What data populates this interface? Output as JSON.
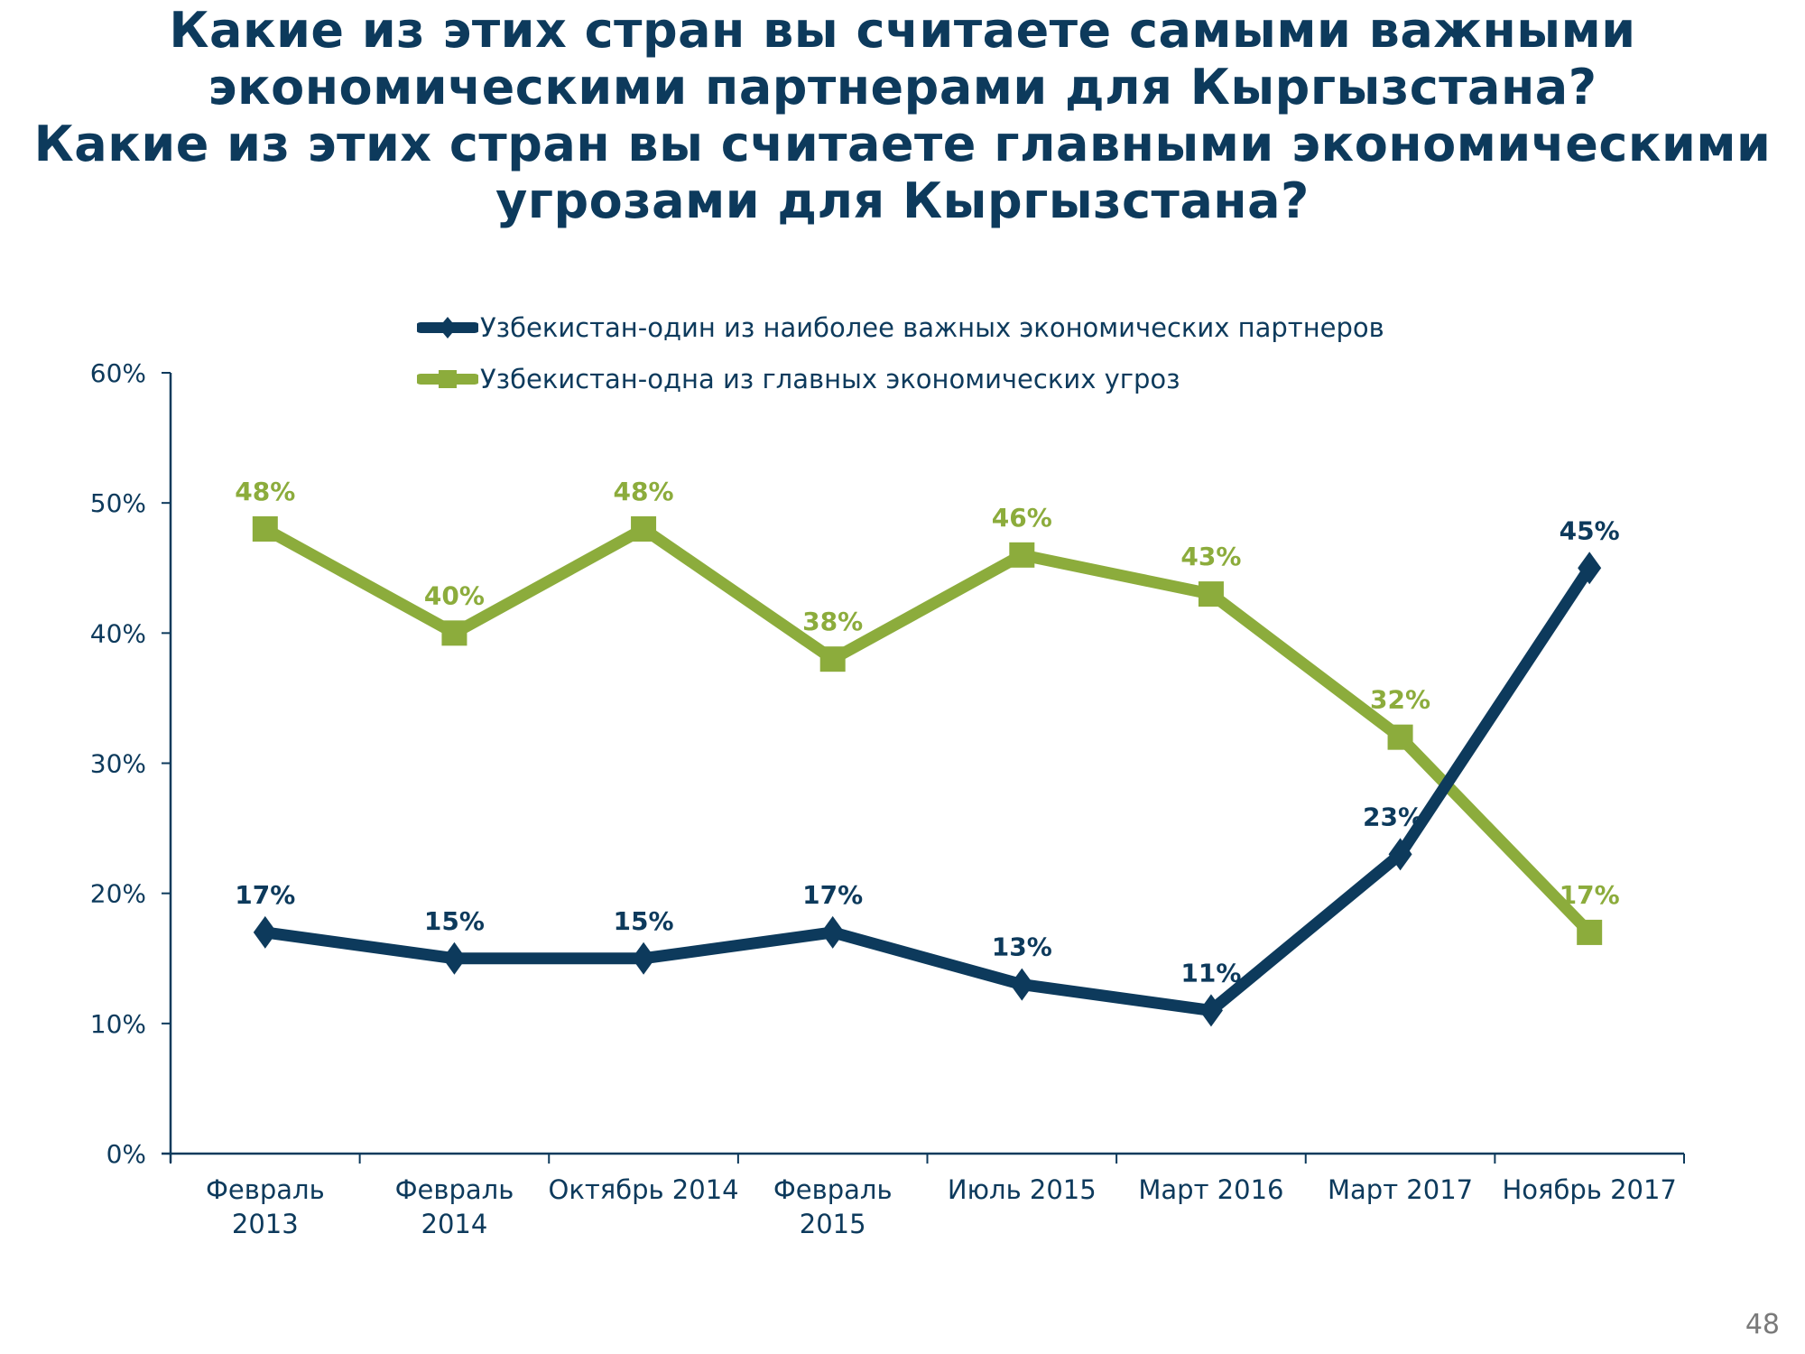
{
  "title": {
    "lines": [
      "Какие из этих стран вы считаете самыми важными",
      "экономическими партнерами для Кыргызстана?",
      "Какие из этих стран вы считаете главными экономическими",
      "угрозами для Кыргызстана?"
    ]
  },
  "page_number": "48",
  "colors": {
    "text": "#0d3a5c",
    "partner_series": "#0d3a5c",
    "threat_series": "#8cac3c",
    "axis": "#0d3a5c"
  },
  "chart_data": {
    "type": "line",
    "title": "Какие из этих стран вы считаете самыми важными экономическими партнерами для Кыргызстана? Какие из этих стран вы считаете главными экономическими угрозами для Кыргызстана?",
    "xlabel": "",
    "ylabel": "",
    "ylim": [
      0,
      60
    ],
    "yticks": [
      0,
      10,
      20,
      30,
      40,
      50,
      60
    ],
    "ytick_labels": [
      "0%",
      "10%",
      "20%",
      "30%",
      "40%",
      "50%",
      "60%"
    ],
    "grid": false,
    "legend_position": "top-center",
    "categories": [
      [
        "Февраль",
        "2013"
      ],
      [
        "Февраль",
        "2014"
      ],
      [
        "Октябрь 2014"
      ],
      [
        "Февраль",
        "2015"
      ],
      [
        "Июль 2015"
      ],
      [
        "Март 2016"
      ],
      [
        "Март 2017"
      ],
      [
        "Ноябрь 2017"
      ]
    ],
    "series": [
      {
        "name": "Узбекистан-один из наиболее важных экономических партнеров",
        "color": "#0d3a5c",
        "marker": "diamond",
        "values": [
          17,
          15,
          15,
          17,
          13,
          11,
          23,
          45
        ],
        "labels": [
          "17%",
          "15%",
          "15%",
          "17%",
          "13%",
          "11%",
          "23%",
          "45%"
        ]
      },
      {
        "name": "Узбекистан-одна из главных экономических угроз",
        "color": "#8cac3c",
        "marker": "square",
        "values": [
          48,
          40,
          48,
          38,
          46,
          43,
          32,
          17
        ],
        "labels": [
          "48%",
          "40%",
          "48%",
          "38%",
          "46%",
          "43%",
          "32%",
          "17%"
        ]
      }
    ]
  }
}
